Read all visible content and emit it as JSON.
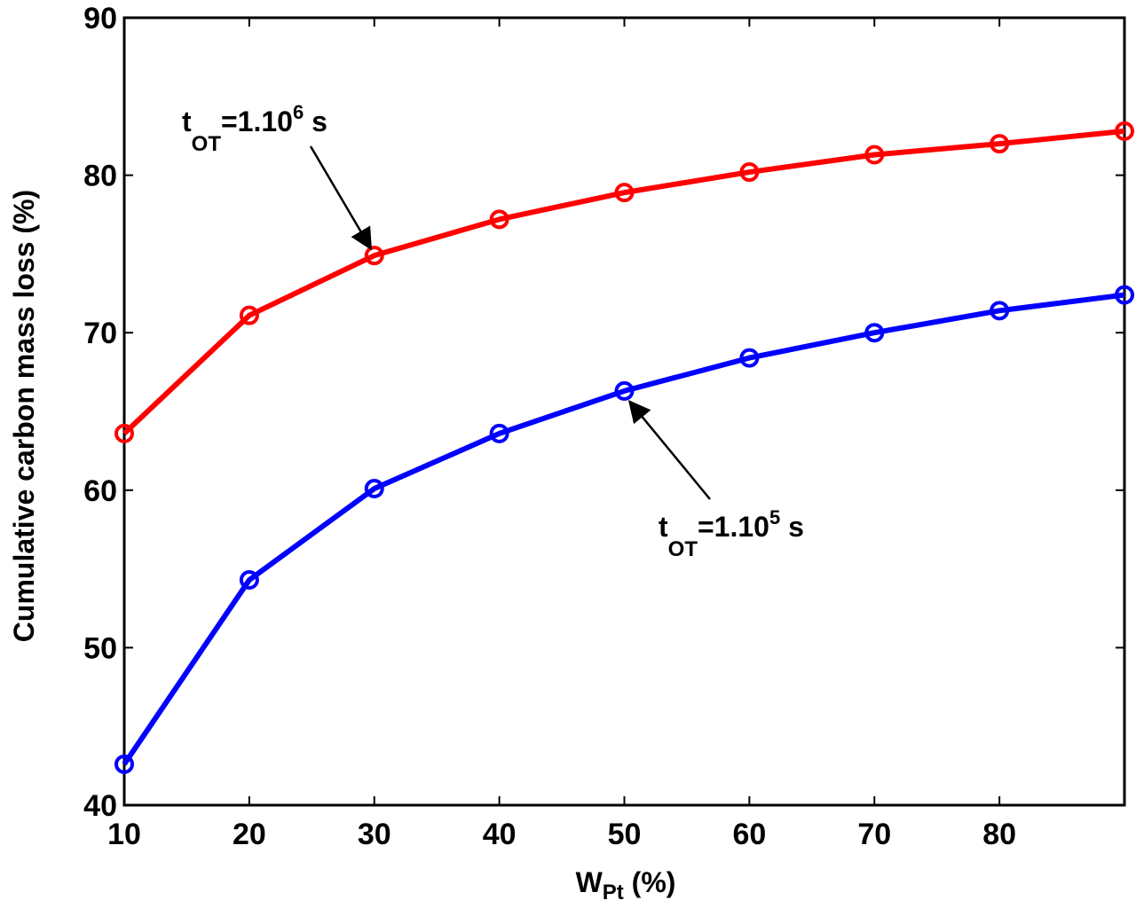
{
  "chart_data": {
    "type": "line",
    "xlabel": {
      "main": "W",
      "sub": "Pt",
      "rest": " (%)"
    },
    "ylabel": "Cumulative carbon mass loss (%)",
    "xlim": [
      10,
      90
    ],
    "ylim": [
      40,
      90
    ],
    "xticks": [
      10,
      20,
      30,
      40,
      50,
      60,
      70,
      80
    ],
    "yticks": [
      40,
      50,
      60,
      70,
      80,
      90
    ],
    "grid": false,
    "legend": "none",
    "x": [
      10,
      20,
      30,
      40,
      50,
      60,
      70,
      80,
      90
    ],
    "series": [
      {
        "color": "#ff0000",
        "values": [
          63.6,
          71.1,
          74.9,
          77.2,
          78.9,
          80.2,
          81.3,
          82.0,
          82.8
        ]
      },
      {
        "color": "#0000ff",
        "values": [
          42.6,
          54.3,
          60.1,
          63.6,
          66.3,
          68.4,
          70.0,
          71.4,
          72.4
        ]
      }
    ],
    "annotations": [
      {
        "t": "t",
        "sub": "OT",
        "eq": "=1.10",
        "sup": "6",
        "unit": " s",
        "x": 30,
        "y": 74.9,
        "series": 0
      },
      {
        "t": "t",
        "sub": "OT",
        "eq": "=1.10",
        "sup": "5",
        "unit": " s",
        "x": 50,
        "y": 66.3,
        "series": 1
      }
    ]
  }
}
